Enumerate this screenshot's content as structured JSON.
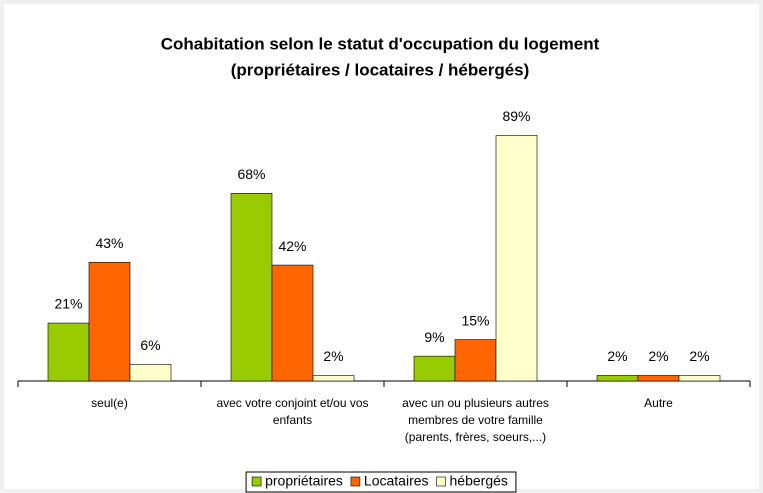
{
  "chart_data": {
    "type": "bar",
    "title": "Cohabitation selon le statut d'occupation du logement",
    "subtitle": "(propriétaires / locataires / hébergés)",
    "categories": [
      "seul(e)",
      "avec votre conjoint et/ou vos enfants",
      "avec un ou plusieurs autres membres de votre famille (parents, frères, soeurs,...)",
      "Autre"
    ],
    "series": [
      {
        "name": "propriétaires",
        "color": "#99cc00",
        "values": [
          21,
          68,
          9,
          2
        ],
        "value_labels": [
          "21%",
          "68%",
          "9%",
          "2%"
        ]
      },
      {
        "name": "Locataires",
        "color": "#ff6600",
        "values": [
          43,
          42,
          15,
          2
        ],
        "value_labels": [
          "43%",
          "42%",
          "15%",
          "2%"
        ]
      },
      {
        "name": "hébergés",
        "color": "#ffffcc",
        "values": [
          6,
          2,
          89,
          2
        ],
        "value_labels": [
          "6%",
          "2%",
          "89%",
          "2%"
        ]
      }
    ],
    "ylim": [
      0,
      100
    ],
    "grid": false,
    "legend": "bottom"
  }
}
